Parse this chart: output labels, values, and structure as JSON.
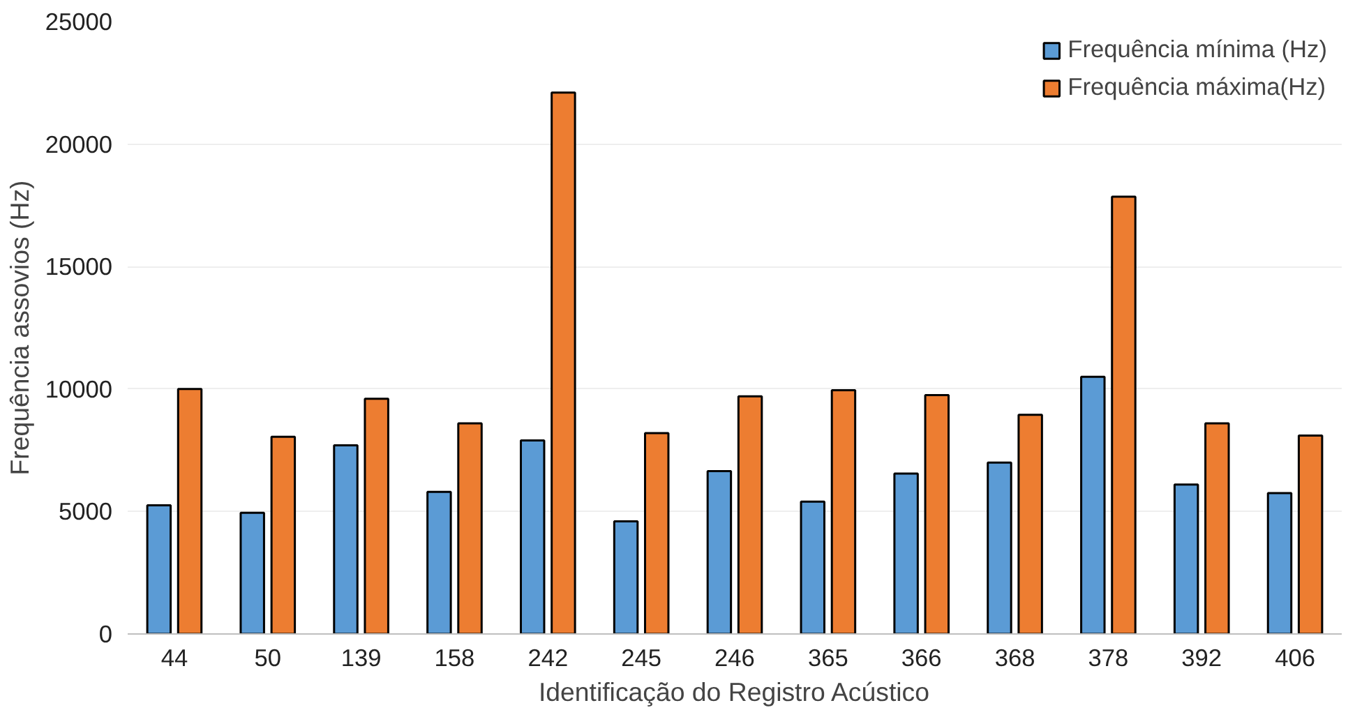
{
  "chart_data": {
    "type": "bar",
    "xlabel": "Identificação do Registro Acústico",
    "ylabel": "Frequência assovios (Hz)",
    "categories": [
      "44",
      "50",
      "139",
      "158",
      "242",
      "245",
      "246",
      "365",
      "366",
      "368",
      "378",
      "392",
      "406"
    ],
    "series": [
      {
        "name": "Frequência mínima (Hz)",
        "color": "#5b9bd5",
        "values": [
          5250,
          4950,
          7700,
          5800,
          7900,
          4600,
          6650,
          5400,
          6550,
          7000,
          10500,
          6100,
          5750
        ]
      },
      {
        "name": "Frequência máxima(Hz)",
        "color": "#ed7d31",
        "values": [
          10000,
          8050,
          9600,
          8600,
          22100,
          8200,
          9700,
          9950,
          9750,
          8950,
          17850,
          8600,
          8100
        ]
      }
    ],
    "ylim": [
      0,
      25000
    ],
    "yticks": [
      0,
      5000,
      10000,
      15000,
      20000,
      25000
    ],
    "grid": "y",
    "legend": "top right"
  }
}
